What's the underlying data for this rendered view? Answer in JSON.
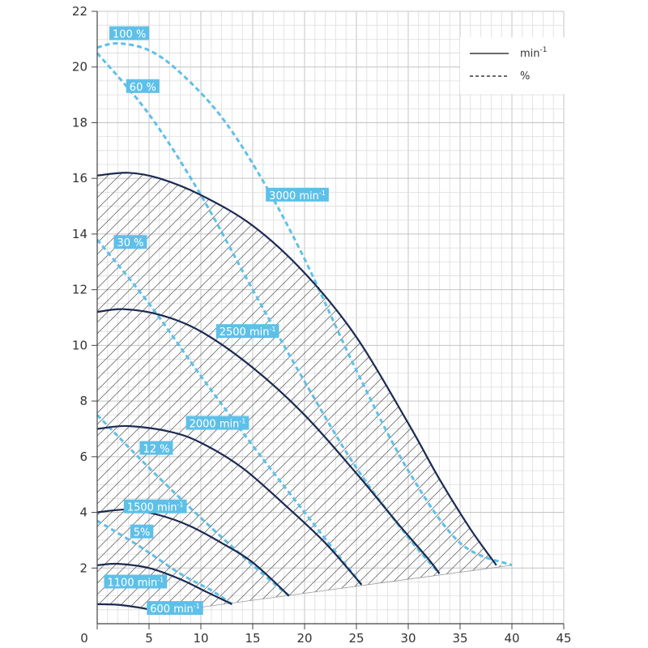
{
  "colors": {
    "speed_curve": "#1b2a52",
    "efficiency_curve": "#5ec0e8",
    "label_bg": "#5ec0e8",
    "label_text": "#ffffff",
    "hatch": "#555555"
  },
  "legend": {
    "solid_label": "min",
    "solid_sup": "-1",
    "dashed_label": "%"
  },
  "chart_data": {
    "type": "line",
    "title": "",
    "xlabel": "",
    "ylabel": "",
    "xlim": [
      0,
      45
    ],
    "ylim": [
      0,
      22
    ],
    "xticks": [
      0,
      5,
      10,
      15,
      20,
      25,
      30,
      35,
      40,
      45
    ],
    "yticks": [
      2,
      4,
      6,
      8,
      10,
      12,
      14,
      16,
      18,
      20,
      22
    ],
    "grid": true,
    "legend_position": "top-right",
    "speed_series": [
      {
        "name": "3000 min-1",
        "text": "3000 min",
        "sup": "-1",
        "label_at": [
          19.3,
          15.4
        ],
        "points": [
          [
            0,
            16.1
          ],
          [
            3,
            16.2
          ],
          [
            6,
            16.0
          ],
          [
            10,
            15.4
          ],
          [
            15,
            14.3
          ],
          [
            20,
            12.6
          ],
          [
            25,
            10.3
          ],
          [
            30,
            7.2
          ],
          [
            33,
            5.2
          ],
          [
            36,
            3.4
          ],
          [
            38.5,
            2.1
          ]
        ]
      },
      {
        "name": "2500 min-1",
        "text": "2500 min",
        "sup": "-1",
        "label_at": [
          14.5,
          10.5
        ],
        "points": [
          [
            0,
            11.2
          ],
          [
            2.5,
            11.3
          ],
          [
            6,
            11.1
          ],
          [
            10,
            10.5
          ],
          [
            15,
            9.2
          ],
          [
            20,
            7.5
          ],
          [
            25,
            5.4
          ],
          [
            29,
            3.6
          ],
          [
            32,
            2.3
          ],
          [
            33,
            1.8
          ]
        ]
      },
      {
        "name": "2000 min-1",
        "text": "2000 min",
        "sup": "-1",
        "label_at": [
          11.6,
          7.2
        ],
        "points": [
          [
            0,
            7.0
          ],
          [
            3,
            7.1
          ],
          [
            7,
            6.9
          ],
          [
            10,
            6.5
          ],
          [
            14,
            5.6
          ],
          [
            18,
            4.3
          ],
          [
            22,
            2.9
          ],
          [
            25.5,
            1.4
          ]
        ]
      },
      {
        "name": "1500 min-1",
        "text": "1500 min",
        "sup": "-1",
        "label_at": [
          5.6,
          4.2
        ],
        "points": [
          [
            0,
            4.0
          ],
          [
            3,
            4.1
          ],
          [
            6,
            3.9
          ],
          [
            9,
            3.5
          ],
          [
            12,
            2.9
          ],
          [
            15,
            2.2
          ],
          [
            18.5,
            1.0
          ]
        ]
      },
      {
        "name": "1100 min-1",
        "text": "1100 min",
        "sup": "-1",
        "label_at": [
          3.7,
          1.5
        ],
        "points": [
          [
            0,
            2.1
          ],
          [
            2,
            2.15
          ],
          [
            5,
            2.0
          ],
          [
            8,
            1.6
          ],
          [
            10.5,
            1.15
          ],
          [
            13,
            0.7
          ]
        ]
      },
      {
        "name": "600 min-1",
        "text": "600 min",
        "sup": "-1",
        "label_at": [
          7.5,
          0.55
        ],
        "points": [
          [
            0,
            0.7
          ],
          [
            2,
            0.68
          ],
          [
            4.5,
            0.55
          ],
          [
            6.2,
            0.4
          ]
        ]
      }
    ],
    "efficiency_series": [
      {
        "name": "100 %",
        "text": "100 %",
        "label_at": [
          3.1,
          21.2
        ],
        "points": [
          [
            0,
            20.7
          ],
          [
            2,
            20.85
          ],
          [
            5,
            20.6
          ],
          [
            8,
            19.8
          ],
          [
            12,
            18.2
          ],
          [
            16,
            15.9
          ],
          [
            20,
            13.1
          ],
          [
            25,
            9.1
          ],
          [
            30,
            5.5
          ],
          [
            35,
            2.9
          ],
          [
            40,
            2.1
          ]
        ]
      },
      {
        "name": "60 %",
        "text": "60 %",
        "label_at": [
          4.4,
          19.3
        ],
        "points": [
          [
            0,
            20.5
          ],
          [
            5,
            18.3
          ],
          [
            10,
            15.4
          ],
          [
            15,
            12.0
          ],
          [
            20,
            8.7
          ],
          [
            25,
            5.6
          ],
          [
            30,
            3.1
          ],
          [
            33,
            1.8
          ]
        ]
      },
      {
        "name": "30 %",
        "text": "30 %",
        "label_at": [
          3.2,
          13.7
        ],
        "points": [
          [
            0,
            13.8
          ],
          [
            5,
            11.5
          ],
          [
            10,
            8.9
          ],
          [
            15,
            6.4
          ],
          [
            20,
            4.0
          ],
          [
            25.5,
            1.4
          ]
        ]
      },
      {
        "name": "12 %",
        "text": "12 %",
        "label_at": [
          5.7,
          6.3
        ],
        "points": [
          [
            0,
            7.5
          ],
          [
            5,
            5.6
          ],
          [
            10,
            3.8
          ],
          [
            15,
            2.1
          ],
          [
            18.5,
            1.0
          ]
        ]
      },
      {
        "name": "5%",
        "text": "5%",
        "label_at": [
          4.3,
          3.3
        ],
        "points": [
          [
            0,
            3.7
          ],
          [
            4,
            2.8
          ],
          [
            8,
            1.8
          ],
          [
            11,
            1.2
          ],
          [
            13,
            0.7
          ]
        ]
      }
    ],
    "operating_area_boundary": [
      [
        0,
        16.1
      ],
      [
        3,
        16.2
      ],
      [
        6,
        16.0
      ],
      [
        10,
        15.4
      ],
      [
        15,
        14.3
      ],
      [
        20,
        12.6
      ],
      [
        25,
        10.3
      ],
      [
        30,
        7.2
      ],
      [
        33,
        5.2
      ],
      [
        36,
        3.4
      ],
      [
        38.5,
        2.1
      ],
      [
        40,
        2.1
      ],
      [
        6.2,
        0.4
      ],
      [
        4.5,
        0.55
      ],
      [
        2,
        0.68
      ],
      [
        0,
        0.7
      ]
    ]
  }
}
